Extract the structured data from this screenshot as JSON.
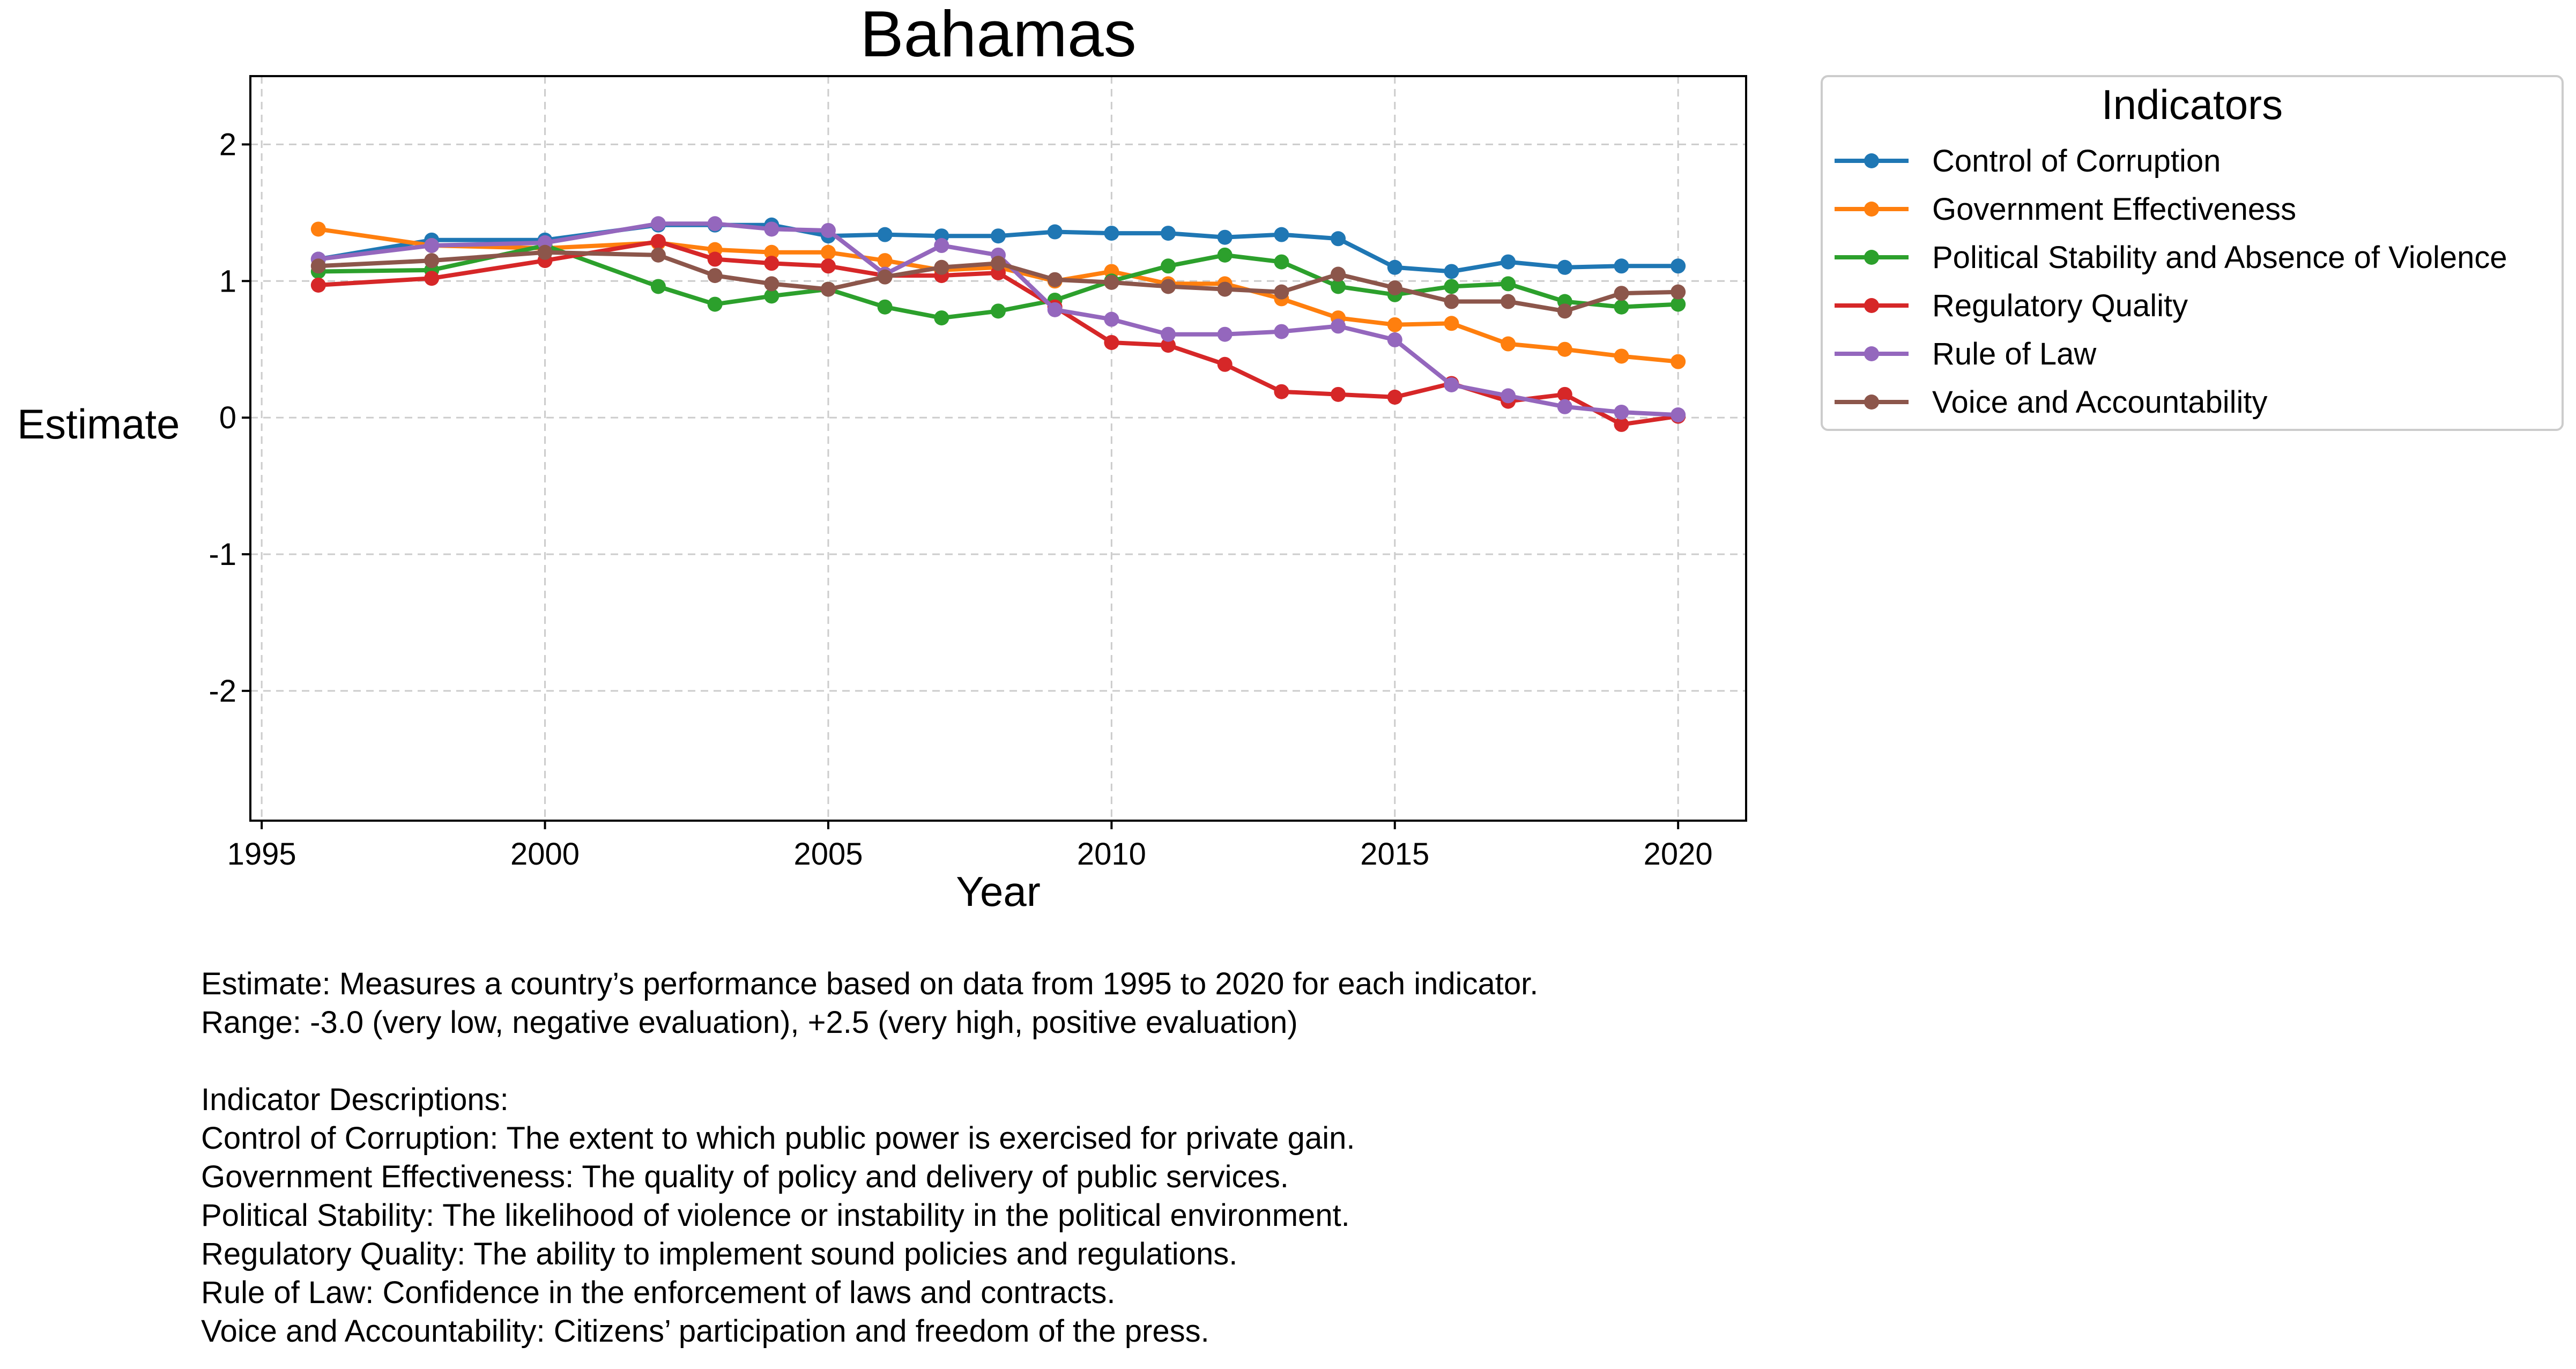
{
  "chart_data": {
    "type": "line",
    "title": "Bahamas",
    "xlabel": "Year",
    "ylabel": "Estimate",
    "xlim": [
      1994.8,
      2021.2
    ],
    "ylim": [
      -2.95,
      2.5
    ],
    "xticks": [
      1995,
      2000,
      2005,
      2010,
      2015,
      2020
    ],
    "yticks": [
      2,
      1,
      0,
      -1,
      -2
    ],
    "grid": true,
    "legend": {
      "title": "Indicators",
      "placement": "outside-top-right"
    },
    "x": [
      1996,
      1998,
      2000,
      2002,
      2003,
      2004,
      2005,
      2006,
      2007,
      2008,
      2009,
      2010,
      2011,
      2012,
      2013,
      2014,
      2015,
      2016,
      2017,
      2018,
      2019,
      2020
    ],
    "series": [
      {
        "name": "Control of Corruption",
        "color": "#1f77b4",
        "values": [
          1.16,
          1.3,
          1.3,
          1.41,
          1.41,
          1.41,
          1.33,
          1.34,
          1.33,
          1.33,
          1.36,
          1.35,
          1.35,
          1.32,
          1.34,
          1.31,
          1.1,
          1.07,
          1.14,
          1.1,
          1.11,
          1.11
        ]
      },
      {
        "name": "Government Effectiveness",
        "color": "#ff7f0e",
        "values": [
          1.38,
          1.26,
          1.24,
          1.28,
          1.23,
          1.21,
          1.21,
          1.15,
          1.08,
          1.1,
          1.0,
          1.07,
          0.98,
          0.98,
          0.87,
          0.73,
          0.68,
          0.69,
          0.54,
          0.5,
          0.45,
          0.41
        ]
      },
      {
        "name": "Political Stability and Absence of Violence",
        "color": "#2ca02c",
        "values": [
          1.07,
          1.08,
          1.26,
          0.96,
          0.83,
          0.89,
          0.94,
          0.81,
          0.73,
          0.78,
          0.86,
          1.0,
          1.11,
          1.19,
          1.14,
          0.96,
          0.9,
          0.96,
          0.98,
          0.85,
          0.81,
          0.83
        ]
      },
      {
        "name": "Regulatory Quality",
        "color": "#d62728",
        "values": [
          0.97,
          1.02,
          1.15,
          1.29,
          1.16,
          1.13,
          1.11,
          1.04,
          1.04,
          1.06,
          0.81,
          0.55,
          0.53,
          0.39,
          0.19,
          0.17,
          0.15,
          0.25,
          0.12,
          0.17,
          -0.05,
          0.01
        ]
      },
      {
        "name": "Rule of Law",
        "color": "#9467bd",
        "values": [
          1.16,
          1.26,
          1.28,
          1.42,
          1.42,
          1.38,
          1.37,
          1.05,
          1.26,
          1.19,
          0.79,
          0.72,
          0.61,
          0.61,
          0.63,
          0.67,
          0.57,
          0.24,
          0.16,
          0.08,
          0.04,
          0.02
        ]
      },
      {
        "name": "Voice and Accountability",
        "color": "#8c564b",
        "values": [
          1.11,
          1.15,
          1.21,
          1.19,
          1.04,
          0.98,
          0.94,
          1.03,
          1.1,
          1.13,
          1.01,
          0.99,
          0.96,
          0.94,
          0.92,
          1.05,
          0.95,
          0.85,
          0.85,
          0.78,
          0.91,
          0.92
        ]
      }
    ]
  },
  "notes": [
    "Estimate: Measures a country’s performance based on data from 1995 to 2020 for each indicator.",
    "Range: -3.0 (very low, negative evaluation), +2.5 (very high, positive evaluation)",
    "",
    "Indicator Descriptions:",
    "Control of Corruption: The extent to which public power is exercised for private gain.",
    "Government Effectiveness: The quality of policy and delivery of public services.",
    "Political Stability: The likelihood of violence or instability in the political environment.",
    "Regulatory Quality: The ability to implement sound policies and regulations.",
    "Rule of Law: Confidence in the enforcement of laws and contracts.",
    "Voice and Accountability: Citizens’ participation and freedom of the press."
  ]
}
